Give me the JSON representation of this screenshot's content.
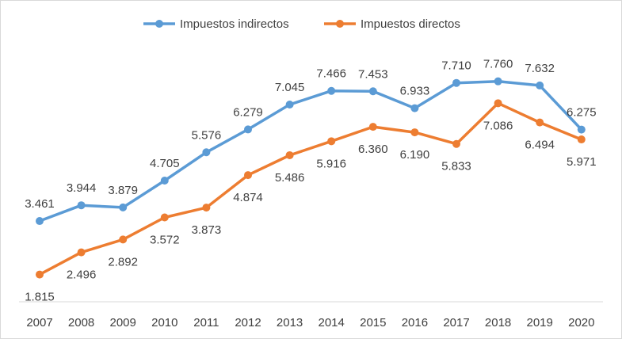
{
  "chart_data": {
    "type": "line",
    "title": "",
    "xlabel": "",
    "ylabel": "",
    "grid": false,
    "legend_position": "top-center",
    "ylim": [
      1000,
      8800
    ],
    "categories": [
      "2007",
      "2008",
      "2009",
      "2010",
      "2011",
      "2012",
      "2013",
      "2014",
      "2015",
      "2016",
      "2017",
      "2018",
      "2019",
      "2020"
    ],
    "series": [
      {
        "name": "Impuestos indirectos",
        "color": "#5b9bd5",
        "label_position": "above",
        "values": [
          3461,
          3944,
          3879,
          4705,
          5576,
          6279,
          7045,
          7466,
          7453,
          6933,
          7710,
          7760,
          7632,
          6275
        ],
        "labels": [
          "3.461",
          "3.944",
          "3.879",
          "4.705",
          "5.576",
          "6.279",
          "7.045",
          "7.466",
          "7.453",
          "6.933",
          "7.710",
          "7.760",
          "7.632",
          "6.275"
        ]
      },
      {
        "name": "Impuestos directos",
        "color": "#ed7d31",
        "label_position": "below",
        "values": [
          1815,
          2496,
          2892,
          3572,
          3873,
          4874,
          5486,
          5916,
          6360,
          6190,
          5833,
          7086,
          6494,
          5971
        ],
        "labels": [
          "1.815",
          "2.496",
          "2.892",
          "3.572",
          "3.873",
          "4.874",
          "5.486",
          "5.916",
          "6.360",
          "6.190",
          "5.833",
          "7.086",
          "6.494",
          "5.971"
        ]
      }
    ]
  }
}
